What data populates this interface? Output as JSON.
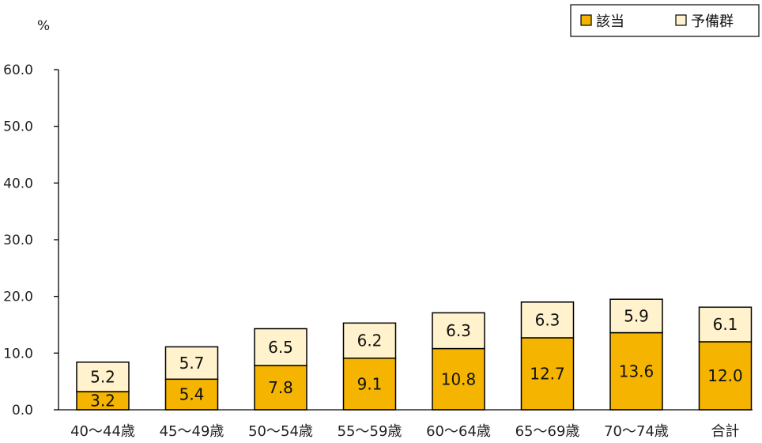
{
  "chart_data": {
    "type": "bar",
    "stacked": true,
    "title": "",
    "ylabel": "%",
    "xlabel": "",
    "ylim": [
      0,
      60
    ],
    "yticks": [
      "0.0",
      "10.0",
      "20.0",
      "30.0",
      "40.0",
      "50.0",
      "60.0"
    ],
    "grid": false,
    "legend_position": "top-right",
    "categories": [
      "40～44歳",
      "45～49歳",
      "50～54歳",
      "55～59歳",
      "60～64歳",
      "65～69歳",
      "70～74歳",
      "合計"
    ],
    "series": [
      {
        "name": "該当",
        "color": "#F5B400",
        "values": [
          3.2,
          5.4,
          7.8,
          9.1,
          10.8,
          12.7,
          13.6,
          12.0
        ],
        "labels": [
          "3.2",
          "5.4",
          "7.8",
          "9.1",
          "10.8",
          "12.7",
          "13.6",
          "12.0"
        ]
      },
      {
        "name": "予備群",
        "color": "#FFF2CC",
        "values": [
          5.2,
          5.7,
          6.5,
          6.2,
          6.3,
          6.3,
          5.9,
          6.1
        ],
        "labels": [
          "5.2",
          "5.7",
          "6.5",
          "6.2",
          "6.3",
          "6.3",
          "5.9",
          "6.1"
        ]
      }
    ]
  }
}
